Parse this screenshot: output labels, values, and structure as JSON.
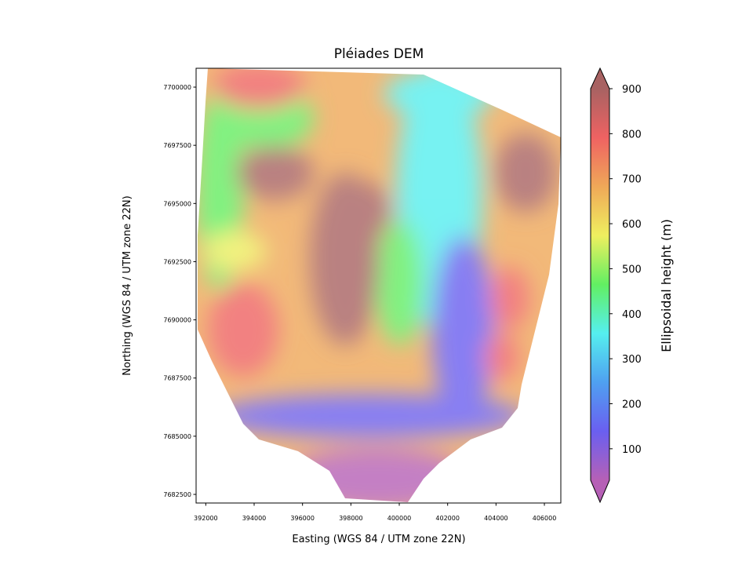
{
  "chart_data": {
    "type": "image",
    "title": "Pléiades DEM",
    "xlabel": "Easting (WGS 84 / UTM zone 22N)",
    "ylabel": "Northing (WGS 84 / UTM zone 22N)",
    "xlim": [
      391600,
      406680
    ],
    "xticks": [
      392000,
      394000,
      396000,
      398000,
      400000,
      402000,
      404000,
      406000
    ],
    "ylim": [
      7682130,
      7700810
    ],
    "yticks": [
      7682500,
      7685000,
      7687500,
      7690000,
      7692500,
      7695000,
      7697500,
      7700000
    ],
    "colorbar": {
      "label": "Ellipsoidal height (m)",
      "lim": [
        30,
        900
      ],
      "ticks": [
        100,
        200,
        300,
        400,
        500,
        600,
        700,
        800,
        900
      ],
      "colors": [
        "#b660b6",
        "#6a5ff0",
        "#4fa0f0",
        "#55efef",
        "#62ef62",
        "#efef5f",
        "#efa858",
        "#ef6262",
        "#a86262"
      ]
    }
  }
}
